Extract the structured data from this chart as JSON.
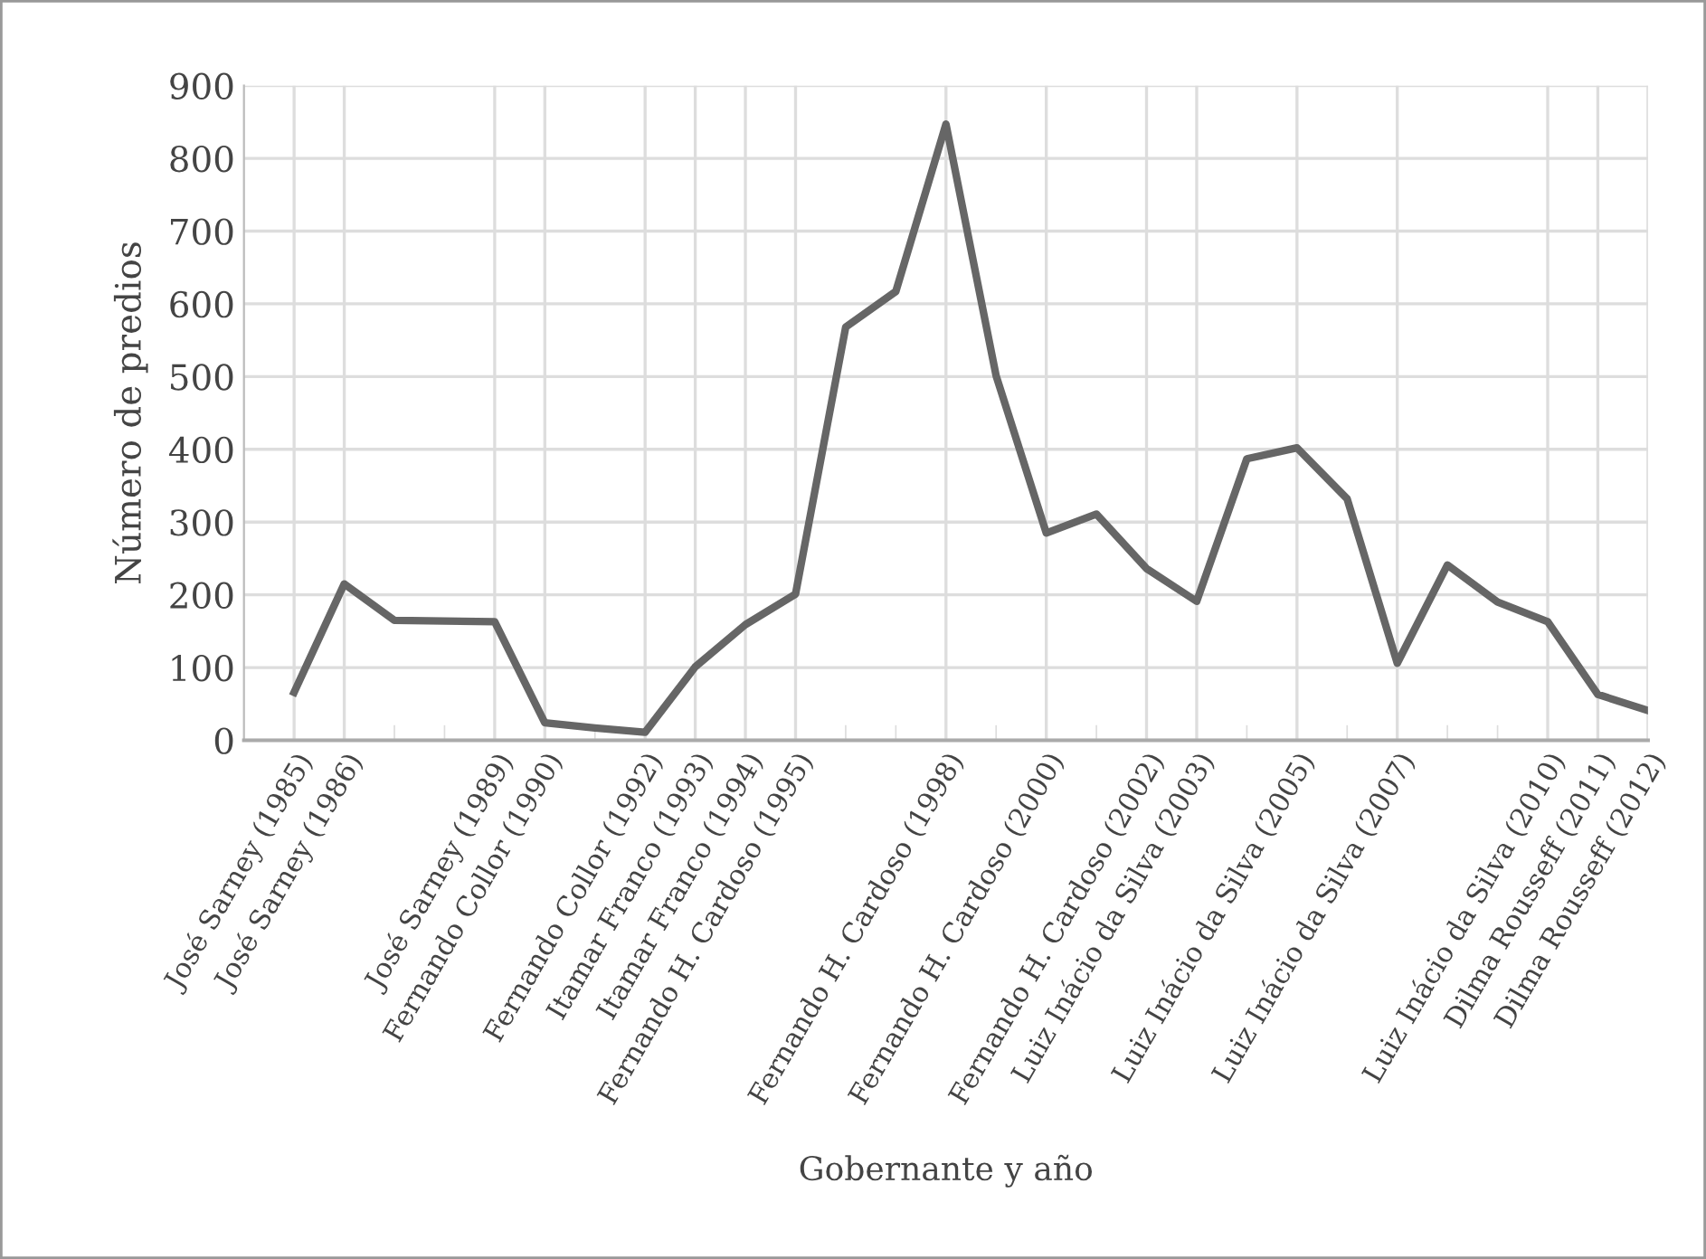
{
  "chart_data": {
    "type": "line",
    "xlabel": "Gobernante y año",
    "ylabel": "Número de predios",
    "categories": [
      "José Sarney (1985)",
      "José Sarney (1986)",
      null,
      null,
      "José Sarney (1989)",
      "Fernando Collor (1990)",
      null,
      "Fernando Collor (1992)",
      "Itamar Franco (1993)",
      "Itamar Franco (1994)",
      "Fernando H. Cardoso (1995)",
      null,
      null,
      "Fernando H. Cardoso (1998)",
      null,
      "Fernando H. Cardoso (2000)",
      null,
      "Fernando H. Cardoso (2002)",
      "Luiz Inácio da Silva (2003)",
      null,
      "Luiz Inácio da Silva (2005)",
      null,
      "Luiz Inácio da Silva (2007)",
      null,
      null,
      "Luiz Inácio da Silva (2010)",
      "Dilma Rousseff (2011)",
      "Dilma Rousseff (2012)"
    ],
    "series": [
      {
        "color": "#666666",
        "values": [
          66,
          215,
          165,
          164,
          163,
          24,
          17,
          11,
          101,
          159,
          201,
          568,
          617,
          847,
          501,
          285,
          311,
          236,
          191,
          387,
          402,
          332,
          106,
          241,
          190,
          163,
          63,
          41
        ]
      }
    ],
    "ylim": [
      0,
      900
    ],
    "yticks": [
      0,
      100,
      200,
      300,
      400,
      500,
      600,
      700,
      800,
      900
    ],
    "grid": true,
    "marker": "none",
    "line_style": "solid"
  }
}
